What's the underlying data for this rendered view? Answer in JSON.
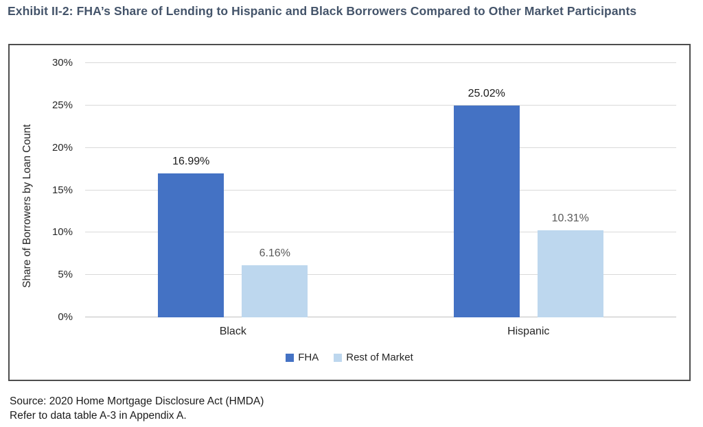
{
  "page": {
    "title_color": "#44546A"
  },
  "chart_data": {
    "type": "bar",
    "title": "Exhibit II-2: FHA’s Share of Lending to Hispanic and Black Borrowers Compared to Other Market Participants",
    "categories": [
      "Black",
      "Hispanic"
    ],
    "series": [
      {
        "name": "FHA",
        "values": [
          16.99,
          25.02
        ],
        "color": "#4472C4",
        "data_label_color": "#1A1A1A"
      },
      {
        "name": "Rest of Market",
        "values": [
          6.16,
          10.31
        ],
        "color": "#BDD7EE",
        "data_label_color": "#595959"
      }
    ],
    "data_labels": true,
    "value_label_format": "{v}%",
    "xlabel": "",
    "ylabel": "Share of Borrowers by Loan Count",
    "ylim": [
      0,
      30
    ],
    "yticks": [
      0,
      5,
      10,
      15,
      20,
      25,
      30
    ],
    "ytick_format": "{v}%",
    "grid": true,
    "gridline_color": "#D9D9D9",
    "axis_line_color": "#BFBFBF",
    "legend_position": "bottom"
  },
  "footer": {
    "line1": "Source: 2020 Home Mortgage Disclosure Act (HMDA)",
    "line2": "Refer to data table A-3 in Appendix A."
  }
}
